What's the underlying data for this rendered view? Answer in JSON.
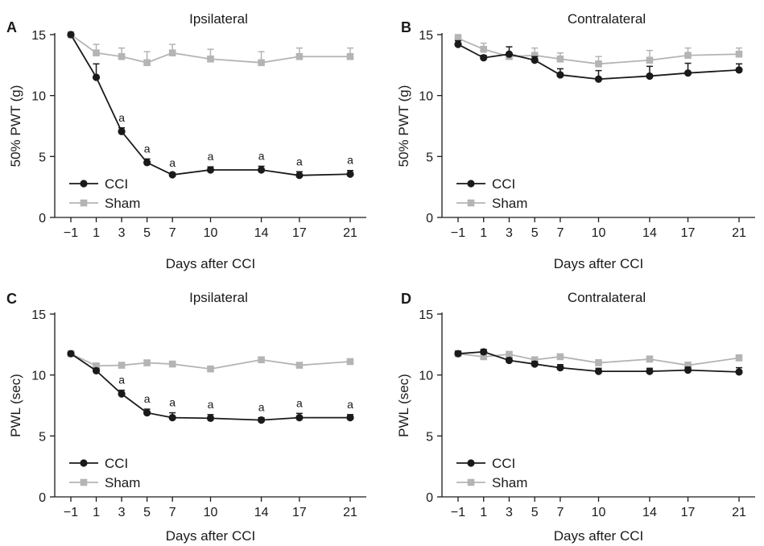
{
  "chart_data": [
    {
      "panel": "A",
      "type": "line",
      "title": "Ipsilateral",
      "xlabel": "Days after CCI",
      "ylabel": "50% PWT (g)",
      "ylim": [
        0,
        15
      ],
      "yticks": [
        0,
        5,
        10,
        15
      ],
      "x": [
        -1,
        1,
        3,
        5,
        7,
        10,
        14,
        17,
        21
      ],
      "xtick_labels": [
        "−1",
        "1",
        "3",
        "5",
        "7",
        "10",
        "14",
        "17",
        "21"
      ],
      "legend_position": "bottom-left",
      "series": [
        {
          "name": "CCI",
          "color": "#1a1a1a",
          "marker": "circle",
          "values": [
            15.0,
            11.5,
            7.05,
            4.5,
            3.5,
            3.9,
            3.9,
            3.45,
            3.55
          ],
          "errors": [
            0.0,
            1.1,
            0.3,
            0.3,
            0.15,
            0.25,
            0.3,
            0.3,
            0.3
          ],
          "sig": [
            "",
            "",
            "a",
            "a",
            "a",
            "a",
            "a",
            "a",
            "a"
          ]
        },
        {
          "name": "Sham",
          "color": "#b4b4b4",
          "marker": "square",
          "values": [
            15.0,
            13.5,
            13.2,
            12.7,
            13.5,
            13.0,
            12.7,
            13.2,
            13.2
          ],
          "errors": [
            0.0,
            0.7,
            0.7,
            0.9,
            0.7,
            0.8,
            0.9,
            0.7,
            0.7
          ],
          "sig": [
            "",
            "",
            "",
            "",
            "",
            "",
            "",
            "",
            ""
          ]
        }
      ]
    },
    {
      "panel": "B",
      "type": "line",
      "title": "Contralateral",
      "xlabel": "Days after CCI",
      "ylabel": "50% PWT (g)",
      "ylim": [
        0,
        15
      ],
      "yticks": [
        0,
        5,
        10,
        15
      ],
      "x": [
        -1,
        1,
        3,
        5,
        7,
        10,
        14,
        17,
        21
      ],
      "xtick_labels": [
        "−1",
        "1",
        "3",
        "5",
        "7",
        "10",
        "14",
        "17",
        "21"
      ],
      "legend_position": "bottom-left",
      "series": [
        {
          "name": "CCI",
          "color": "#1a1a1a",
          "marker": "circle",
          "values": [
            14.2,
            13.1,
            13.4,
            12.9,
            11.7,
            11.35,
            11.6,
            11.85,
            12.1
          ],
          "errors": [
            0.3,
            0.2,
            0.6,
            0.3,
            0.5,
            0.7,
            0.8,
            0.8,
            0.5
          ],
          "sig": [
            "",
            "",
            "",
            "",
            "",
            "",
            "",
            "",
            ""
          ]
        },
        {
          "name": "Sham",
          "color": "#b4b4b4",
          "marker": "square",
          "values": [
            14.7,
            13.8,
            13.2,
            13.3,
            13.0,
            12.6,
            12.9,
            13.3,
            13.4
          ],
          "errors": [
            0.3,
            0.5,
            0.3,
            0.6,
            0.5,
            0.6,
            0.8,
            0.6,
            0.5
          ],
          "sig": [
            "",
            "",
            "",
            "",
            "",
            "",
            "",
            "",
            ""
          ]
        }
      ]
    },
    {
      "panel": "C",
      "type": "line",
      "title": "Ipsilateral",
      "xlabel": "Days after CCI",
      "ylabel": "PWL (sec)",
      "ylim": [
        0,
        15
      ],
      "yticks": [
        0,
        5,
        10,
        15
      ],
      "x": [
        -1,
        1,
        3,
        5,
        7,
        10,
        14,
        17,
        21
      ],
      "xtick_labels": [
        "−1",
        "1",
        "3",
        "5",
        "7",
        "10",
        "14",
        "17",
        "21"
      ],
      "legend_position": "bottom-left",
      "series": [
        {
          "name": "CCI",
          "color": "#1a1a1a",
          "marker": "circle",
          "values": [
            11.75,
            10.35,
            8.45,
            6.9,
            6.5,
            6.45,
            6.3,
            6.5,
            6.5
          ],
          "errors": [
            0.1,
            0.2,
            0.3,
            0.3,
            0.4,
            0.3,
            0.2,
            0.35,
            0.25
          ],
          "sig": [
            "",
            "",
            "a",
            "a",
            "a",
            "a",
            "a",
            "a",
            "a"
          ]
        },
        {
          "name": "Sham",
          "color": "#b4b4b4",
          "marker": "square",
          "values": [
            11.75,
            10.75,
            10.8,
            11.0,
            10.9,
            10.5,
            11.25,
            10.8,
            11.1
          ],
          "errors": [
            0.1,
            0.2,
            0.2,
            0.2,
            0.2,
            0.2,
            0.2,
            0.2,
            0.2
          ],
          "sig": [
            "",
            "",
            "",
            "",
            "",
            "",
            "",
            "",
            ""
          ]
        }
      ]
    },
    {
      "panel": "D",
      "type": "line",
      "title": "Contralateral",
      "xlabel": "Days after CCI",
      "ylabel": "PWL (sec)",
      "ylim": [
        0,
        15
      ],
      "yticks": [
        0,
        5,
        10,
        15
      ],
      "x": [
        -1,
        1,
        3,
        5,
        7,
        10,
        14,
        17,
        21
      ],
      "xtick_labels": [
        "−1",
        "1",
        "3",
        "5",
        "7",
        "10",
        "14",
        "17",
        "21"
      ],
      "legend_position": "bottom-left",
      "series": [
        {
          "name": "CCI",
          "color": "#1a1a1a",
          "marker": "circle",
          "values": [
            11.75,
            11.9,
            11.2,
            10.9,
            10.6,
            10.3,
            10.3,
            10.4,
            10.25
          ],
          "errors": [
            0.2,
            0.2,
            0.2,
            0.2,
            0.25,
            0.25,
            0.25,
            0.25,
            0.35
          ],
          "sig": [
            "",
            "",
            "",
            "",
            "",
            "",
            "",
            "",
            ""
          ]
        },
        {
          "name": "Sham",
          "color": "#b4b4b4",
          "marker": "square",
          "values": [
            11.75,
            11.5,
            11.7,
            11.25,
            11.5,
            11.0,
            11.3,
            10.8,
            11.4
          ],
          "errors": [
            0.2,
            0.2,
            0.2,
            0.2,
            0.2,
            0.25,
            0.25,
            0.25,
            0.25
          ],
          "sig": [
            "",
            "",
            "",
            "",
            "",
            "",
            "",
            "",
            ""
          ]
        }
      ]
    }
  ]
}
